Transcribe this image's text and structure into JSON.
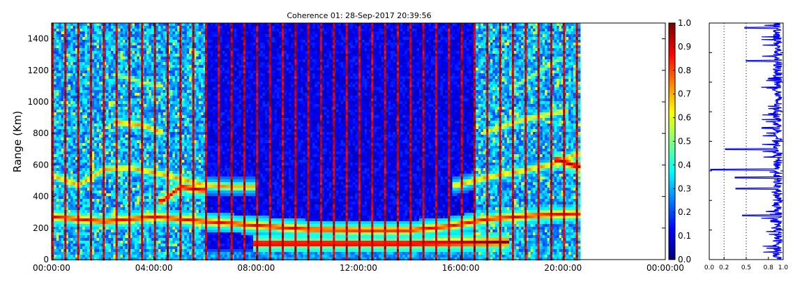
{
  "chart_data": [
    {
      "type": "heatmap",
      "title": "Coherence 01: 28-Sep-2017 20:39:56",
      "xlabel": "",
      "ylabel": "Range (Km)",
      "x_ticks": [
        "00:00:00",
        "04:00:00",
        "08:00:00",
        "12:00:00",
        "16:00:00",
        "20:00:00",
        "00:00:00"
      ],
      "xlim_hours": [
        0,
        24
      ],
      "data_end_hours": 20.6,
      "y_ticks": [
        0,
        200,
        400,
        600,
        800,
        1000,
        1200,
        1400
      ],
      "ylim": [
        0,
        1500
      ],
      "colormap": "jet",
      "colorbar": {
        "ticks": [
          "0.0",
          "0.1",
          "0.2",
          "0.3",
          "0.4",
          "0.5",
          "0.6",
          "0.7",
          "0.8",
          "0.9",
          "1.0"
        ],
        "range": [
          0,
          1
        ]
      },
      "grid": false,
      "features": [
        {
          "name": "ground",
          "points": [
            [
              0.0,
              60
            ],
            [
              21.0,
              60
            ]
          ],
          "value": 0.3
        },
        {
          "name": "low-layer",
          "points": [
            [
              0.0,
              280
            ],
            [
              2.0,
              250
            ],
            [
              4.0,
              280
            ],
            [
              6.0,
              250
            ],
            [
              8.0,
              225
            ],
            [
              10.0,
              200
            ],
            [
              12.0,
              195
            ],
            [
              14.0,
              195
            ],
            [
              15.5,
              220
            ],
            [
              17.0,
              265
            ],
            [
              19.0,
              290
            ],
            [
              20.5,
              300
            ]
          ],
          "value": 0.9
        },
        {
          "name": "night-layer-1",
          "points": [
            [
              0.0,
              540
            ],
            [
              1.0,
              480
            ],
            [
              2.0,
              580
            ],
            [
              3.0,
              590
            ],
            [
              4.0,
              560
            ],
            [
              5.0,
              520
            ],
            [
              6.0,
              480
            ],
            [
              7.0,
              470
            ],
            [
              7.8,
              470
            ]
          ],
          "value": 0.75
        },
        {
          "name": "night-layer-2",
          "points": [
            [
              2.5,
              880
            ],
            [
              3.5,
              860
            ],
            [
              4.2,
              820
            ]
          ],
          "value": 0.75
        },
        {
          "name": "night-layer-3",
          "points": [
            [
              2.5,
              1180
            ],
            [
              3.5,
              1130
            ],
            [
              4.2,
              1110
            ]
          ],
          "value": 0.6
        },
        {
          "name": "morning-patch",
          "points": [
            [
              4.3,
              380
            ],
            [
              5.0,
              470
            ],
            [
              5.8,
              450
            ]
          ],
          "value": 0.95
        },
        {
          "name": "day-layer-echo",
          "points": [
            [
              8.0,
              110
            ],
            [
              10.0,
              110
            ],
            [
              12.0,
              110
            ],
            [
              14.0,
              110
            ],
            [
              16.0,
              115
            ],
            [
              17.7,
              120
            ]
          ],
          "value": 1.0
        },
        {
          "name": "evening-layer-1",
          "points": [
            [
              15.8,
              480
            ],
            [
              17.0,
              530
            ],
            [
              18.0,
              560
            ],
            [
              19.5,
              610
            ],
            [
              20.5,
              680
            ]
          ],
          "value": 0.75
        },
        {
          "name": "evening-layer-2",
          "points": [
            [
              17.0,
              820
            ],
            [
              18.5,
              900
            ],
            [
              20.0,
              950
            ]
          ],
          "value": 0.7
        },
        {
          "name": "evening-layer-3",
          "points": [
            [
              18.0,
              1100
            ],
            [
              19.0,
              1200
            ],
            [
              19.8,
              1280
            ]
          ],
          "value": 0.6
        },
        {
          "name": "evening-patch",
          "points": [
            [
              19.8,
              640
            ],
            [
              20.5,
              600
            ]
          ],
          "value": 1.0
        }
      ]
    },
    {
      "type": "line",
      "xlim": [
        0,
        1
      ],
      "x_ticks": [
        "0.0",
        "0.2",
        "0.5",
        "0.8",
        "1.0"
      ],
      "vlines": [
        0.2,
        0.5
      ],
      "ylim": [
        0,
        1500
      ],
      "color": "#0000ff",
      "profile_spikes": [
        {
          "y": 570,
          "x": 0.02
        },
        {
          "y": 700,
          "x": 0.22
        },
        {
          "y": 1260,
          "x": 0.5
        },
        {
          "y": 1470,
          "x": 0.48
        },
        {
          "y": 520,
          "x": 0.35
        },
        {
          "y": 450,
          "x": 0.36
        },
        {
          "y": 280,
          "x": 0.45
        }
      ]
    }
  ]
}
